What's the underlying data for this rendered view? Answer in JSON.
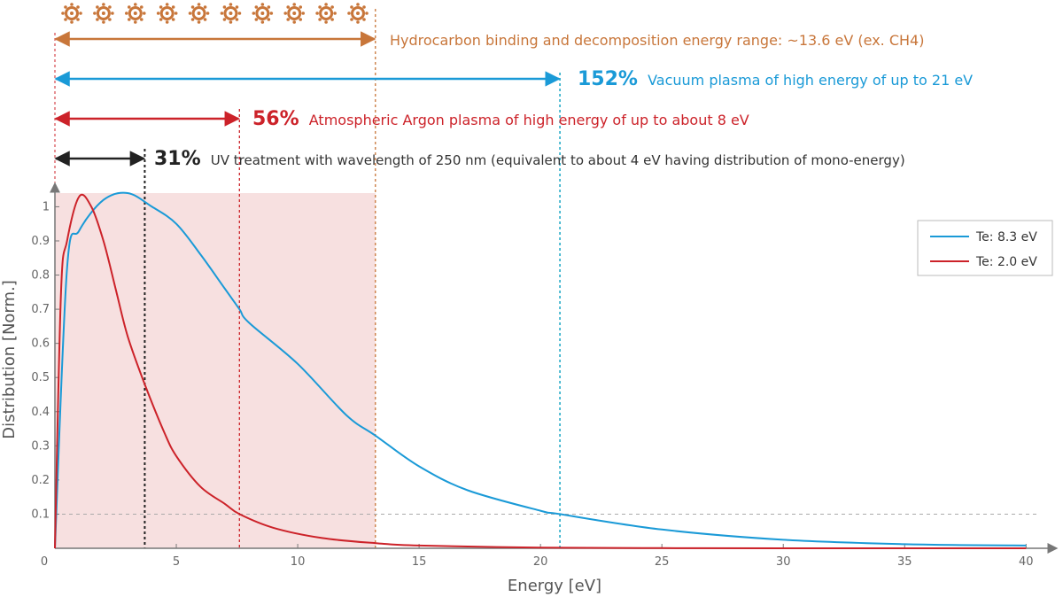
{
  "colors": {
    "hydrocarbon": "#c8763a",
    "vacuum": "#1a9ad7",
    "argon": "#cc2229",
    "uv": "#222222",
    "axis": "#777777",
    "shade": "#f7e0e0",
    "cyan_marker": "#18a6c4"
  },
  "annotations": {
    "hydrocarbon": {
      "text": "Hydrocarbon binding and decomposition energy range: ~13.6 eV (ex. CH4)",
      "energy": 13.2
    },
    "vacuum": {
      "percent": "152%",
      "text": "Vacuum plasma of high energy of up to 21 eV",
      "energy": 20.8
    },
    "argon": {
      "percent": "56%",
      "text": "Atmospheric Argon plasma of high energy of up to about 8 eV",
      "energy": 7.6
    },
    "uv": {
      "percent": "31%",
      "text": "UV treatment with wavelength of 250 nm (equivalent to about 4 eV having distribution of mono-energy)",
      "energy": 3.7
    },
    "molecule_icon": "hydrocarbon-molecule-icon",
    "molecule_count": 10
  },
  "chart_data": {
    "type": "line",
    "xlabel": "Energy [eV]",
    "ylabel": "Distribution [Norm.]",
    "xlim": [
      0,
      40.5
    ],
    "ylim": [
      0,
      1.04
    ],
    "x_ticks": [
      "0",
      "5",
      "10",
      "15",
      "20",
      "25",
      "30",
      "35",
      "40"
    ],
    "y_ticks": [
      "0.1",
      "0.2",
      "0.3",
      "0.4",
      "0.5",
      "0.6",
      "0.7",
      "0.8",
      "0.9",
      "1"
    ],
    "reference_line_y": 0.1,
    "shaded_range_x": [
      0,
      13.2
    ],
    "legend": {
      "position": "top-right"
    },
    "series": [
      {
        "name": "Te: 8.3 eV",
        "color": "#1a9ad7",
        "peak_x": 2.8,
        "peak_y": 1.04,
        "points": [
          [
            0,
            0
          ],
          [
            0.5,
            0.82
          ],
          [
            1,
            0.93
          ],
          [
            2,
            1.02
          ],
          [
            3,
            1.04
          ],
          [
            4,
            1.0
          ],
          [
            5,
            0.95
          ],
          [
            6,
            0.86
          ],
          [
            7,
            0.76
          ],
          [
            7.6,
            0.7
          ],
          [
            8,
            0.66
          ],
          [
            10,
            0.54
          ],
          [
            12,
            0.39
          ],
          [
            13.2,
            0.33
          ],
          [
            15,
            0.24
          ],
          [
            17,
            0.17
          ],
          [
            20,
            0.11
          ],
          [
            20.8,
            0.1
          ],
          [
            25,
            0.055
          ],
          [
            30,
            0.025
          ],
          [
            35,
            0.012
          ],
          [
            40,
            0.008
          ]
        ]
      },
      {
        "name": "Te: 2.0 eV",
        "color": "#cc2229",
        "peak_x": 1.1,
        "peak_y": 1.04,
        "points": [
          [
            0,
            0
          ],
          [
            0.25,
            0.75
          ],
          [
            0.5,
            0.9
          ],
          [
            1,
            1.03
          ],
          [
            1.5,
            1.0
          ],
          [
            2,
            0.9
          ],
          [
            2.5,
            0.76
          ],
          [
            3,
            0.62
          ],
          [
            3.7,
            0.48
          ],
          [
            4.5,
            0.34
          ],
          [
            5,
            0.27
          ],
          [
            6,
            0.18
          ],
          [
            7,
            0.13
          ],
          [
            7.6,
            0.1
          ],
          [
            9,
            0.06
          ],
          [
            11,
            0.03
          ],
          [
            13.2,
            0.015
          ],
          [
            15,
            0.008
          ],
          [
            20,
            0.002
          ],
          [
            25,
            0.0005
          ],
          [
            30,
            0
          ],
          [
            40,
            0
          ]
        ]
      }
    ]
  }
}
